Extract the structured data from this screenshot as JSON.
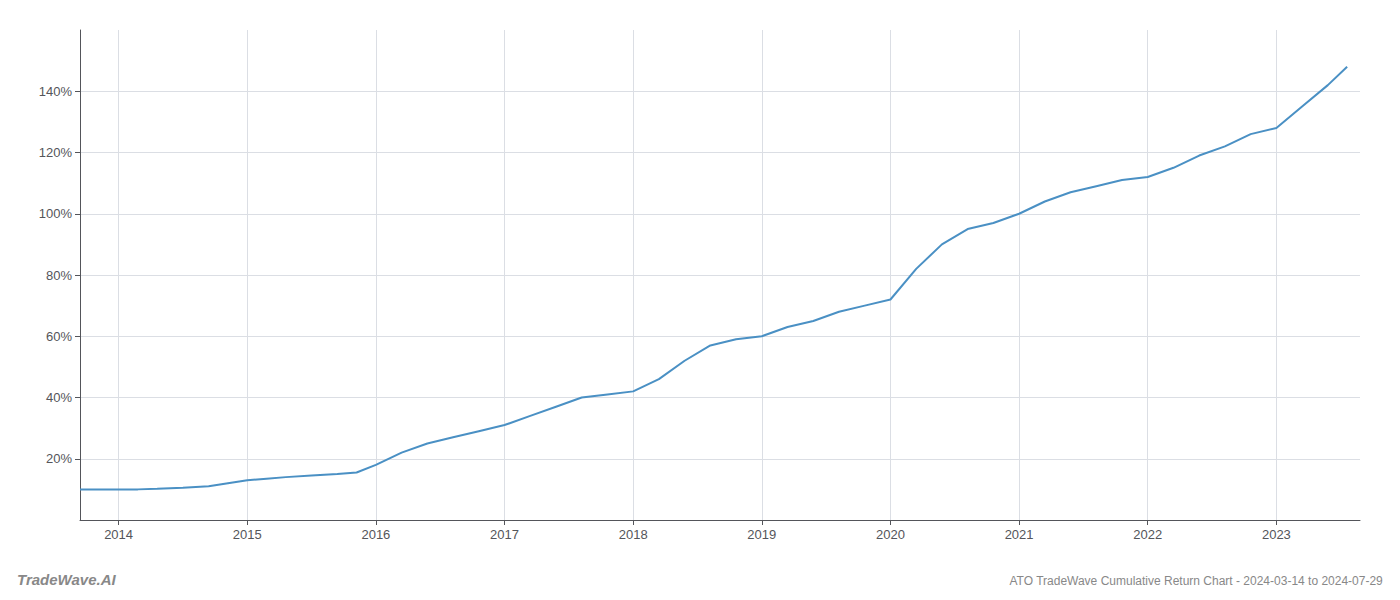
{
  "chart_data": {
    "type": "line",
    "title": "ATO TradeWave Cumulative Return Chart - 2024-03-14 to 2024-07-29",
    "annotations": [
      "TradeWave.AI"
    ],
    "color": "#4a90c4",
    "grid": true,
    "x": [
      2013.7,
      2013.85,
      2014.0,
      2014.15,
      2014.3,
      2014.5,
      2014.7,
      2014.85,
      2015.0,
      2015.15,
      2015.3,
      2015.5,
      2015.7,
      2015.85,
      2016.0,
      2016.2,
      2016.4,
      2016.6,
      2016.8,
      2017.0,
      2017.2,
      2017.4,
      2017.6,
      2017.8,
      2018.0,
      2018.2,
      2018.4,
      2018.6,
      2018.8,
      2019.0,
      2019.2,
      2019.4,
      2019.6,
      2019.8,
      2020.0,
      2020.2,
      2020.4,
      2020.6,
      2020.8,
      2021.0,
      2021.2,
      2021.4,
      2021.6,
      2021.8,
      2022.0,
      2022.2,
      2022.4,
      2022.6,
      2022.8,
      2023.0,
      2023.2,
      2023.4,
      2023.55
    ],
    "values": [
      10,
      10,
      10,
      10,
      10.2,
      10.5,
      11,
      12,
      13,
      13.5,
      14,
      14.5,
      15,
      15.5,
      18,
      22,
      25,
      27,
      29,
      31,
      34,
      37,
      40,
      41,
      42,
      46,
      52,
      57,
      59,
      60,
      63,
      65,
      68,
      70,
      72,
      82,
      90,
      95,
      97,
      100,
      104,
      107,
      109,
      111,
      112,
      115,
      119,
      122,
      126,
      128,
      135,
      142,
      148
    ],
    "xlim": [
      2013.7,
      2023.65
    ],
    "xticks": [
      2014,
      2015,
      2016,
      2017,
      2018,
      2019,
      2020,
      2021,
      2022,
      2023
    ],
    "ylim": [
      0,
      160
    ],
    "yticks": [
      {
        "value": 20,
        "label": "20%"
      },
      {
        "value": 40,
        "label": "40%"
      },
      {
        "value": 60,
        "label": "60%"
      },
      {
        "value": 80,
        "label": "80%"
      },
      {
        "value": 100,
        "label": "100%"
      },
      {
        "value": 120,
        "label": "120%"
      },
      {
        "value": 140,
        "label": "140%"
      }
    ]
  }
}
